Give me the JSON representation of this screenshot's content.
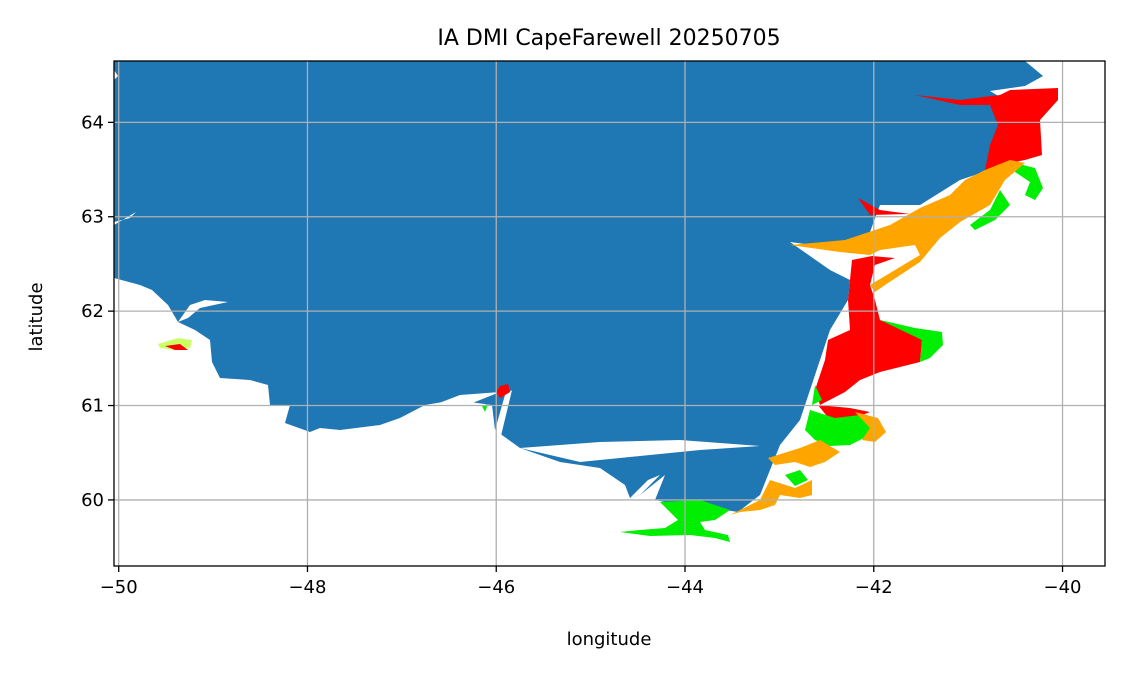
{
  "title": "IA DMI CapeFarewell 20250705",
  "xlabel": "longitude",
  "ylabel": "latitude",
  "x_ticks": [
    {
      "value": -50,
      "label": "−50"
    },
    {
      "value": -48,
      "label": "−48"
    },
    {
      "value": -46,
      "label": "−46"
    },
    {
      "value": -44,
      "label": "−44"
    },
    {
      "value": -42,
      "label": "−42"
    },
    {
      "value": -40,
      "label": "−40"
    }
  ],
  "y_ticks": [
    {
      "value": 60,
      "label": "60"
    },
    {
      "value": 61,
      "label": "61"
    },
    {
      "value": 62,
      "label": "62"
    },
    {
      "value": 63,
      "label": "63"
    },
    {
      "value": 64,
      "label": "64"
    }
  ],
  "xlim": [
    -50.05,
    -39.55
  ],
  "ylim": [
    59.3,
    64.65
  ],
  "grid": true,
  "colors": {
    "land": "#1f77b4",
    "ice_red": "#ff0000",
    "ice_orange": "#ffa500",
    "ice_green": "#00ee00",
    "ice_yellow": "#ccff66",
    "grid": "#b0b0b0"
  },
  "chart_data": {
    "type": "map",
    "title": "IA DMI CapeFarewell 20250705",
    "xlabel": "longitude",
    "ylabel": "latitude",
    "xlim": [
      -50.05,
      -39.55
    ],
    "ylim": [
      59.3,
      64.65
    ]
  }
}
